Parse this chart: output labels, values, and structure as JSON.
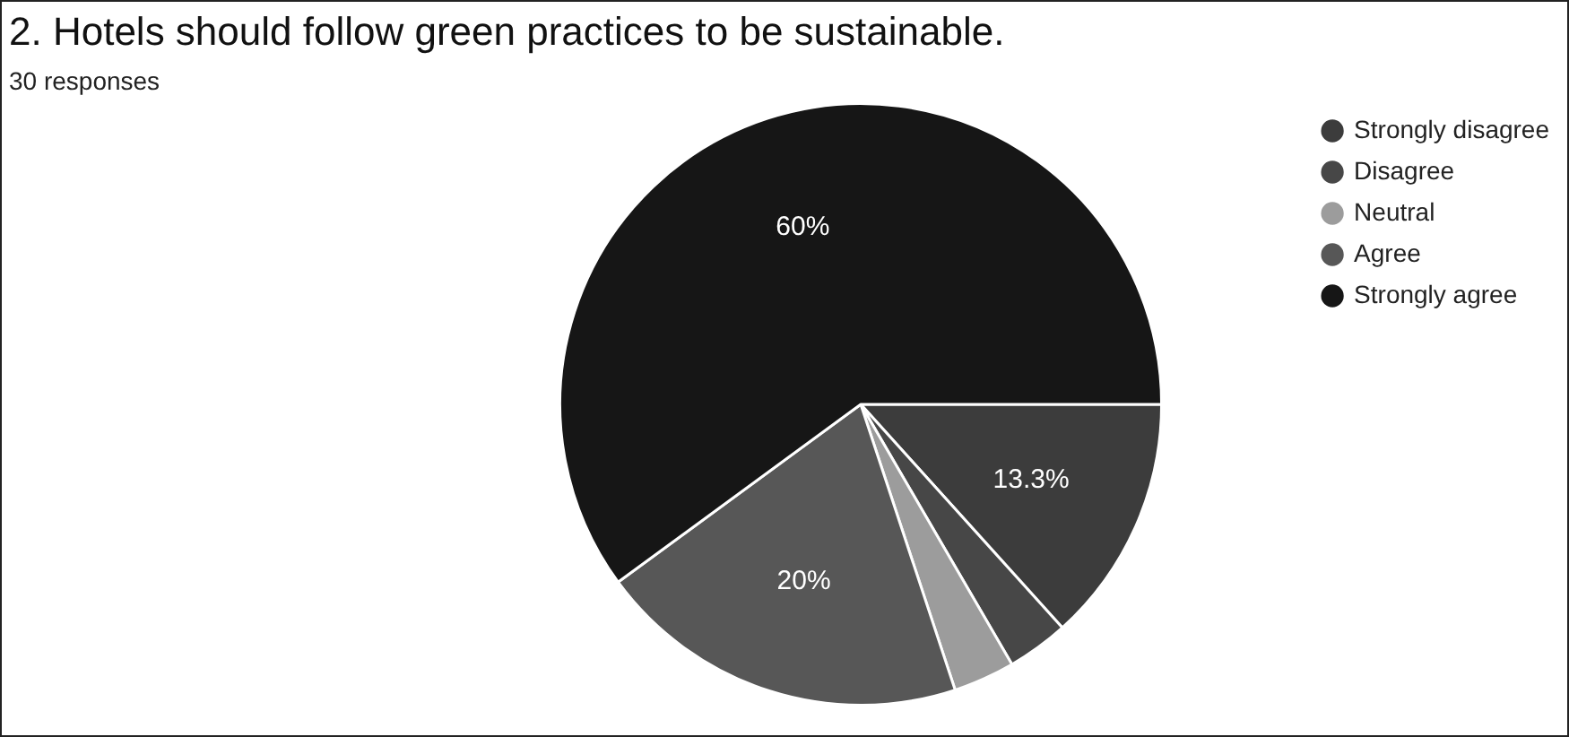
{
  "chart_data": {
    "type": "pie",
    "title": "2. Hotels should follow green practices to be sustainable.",
    "subtitle": "30 responses",
    "categories": [
      "Strongly disagree",
      "Disagree",
      "Neutral",
      "Agree",
      "Strongly agree"
    ],
    "values": [
      13.3,
      3.3,
      3.3,
      20,
      60
    ],
    "colors": [
      "#3c3c3c",
      "#474747",
      "#9c9c9c",
      "#575757",
      "#161616"
    ],
    "value_labels": [
      "13.3%",
      null,
      null,
      "20%",
      "60%"
    ],
    "legend": "right"
  }
}
